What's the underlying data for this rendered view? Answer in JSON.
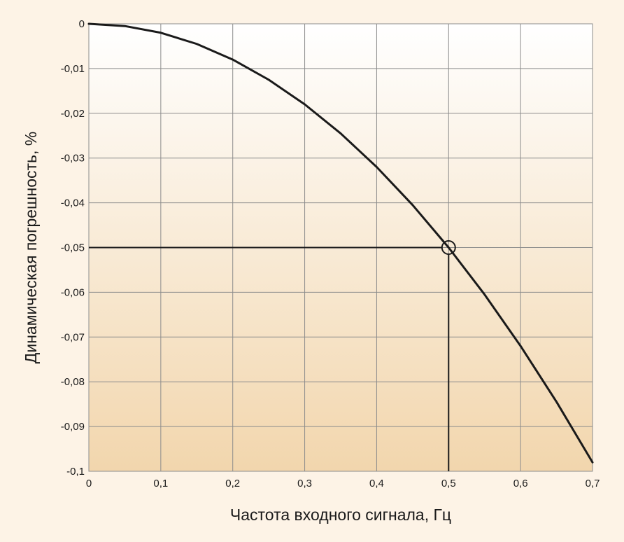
{
  "chart_data": {
    "type": "line",
    "xlabel": "Частота входного сигнала, Гц",
    "ylabel": "Динамическая погрешность, %",
    "xlim": [
      0,
      0.7
    ],
    "ylim": [
      -0.1,
      0
    ],
    "x_ticks": [
      0,
      0.1,
      0.2,
      0.3,
      0.4,
      0.5,
      0.6,
      0.7
    ],
    "x_tick_labels": [
      "0",
      "0,1",
      "0,2",
      "0,3",
      "0,4",
      "0,5",
      "0,6",
      "0,7"
    ],
    "y_ticks": [
      0,
      -0.01,
      -0.02,
      -0.03,
      -0.04,
      -0.05,
      -0.06,
      -0.07,
      -0.08,
      -0.09,
      -0.1
    ],
    "y_tick_labels": [
      "0",
      "-0,01",
      "-0,02",
      "-0,03",
      "-0,04",
      "-0,05",
      "-0,06",
      "-0,07",
      "-0,08",
      "-0,09",
      "-0,1"
    ],
    "grid": true,
    "series": [
      {
        "x": [
          0,
          0.05,
          0.1,
          0.15,
          0.2,
          0.25,
          0.3,
          0.35,
          0.4,
          0.45,
          0.5,
          0.55,
          0.6,
          0.65,
          0.7
        ],
        "y": [
          0,
          -0.0005,
          -0.002,
          -0.0045,
          -0.008,
          -0.0125,
          -0.018,
          -0.0245,
          -0.032,
          -0.0405,
          -0.05,
          -0.0605,
          -0.072,
          -0.0845,
          -0.098
        ]
      }
    ],
    "annotation": {
      "x": 0.5,
      "y": -0.05,
      "marker": "circle",
      "guide_lines": true
    },
    "colors": {
      "background": "#fdf3e6",
      "plot_top": "#ffffff",
      "plot_bottom": "#f2d6ad",
      "line": "#1a1a1a",
      "grid": "#8c8c8c"
    }
  }
}
